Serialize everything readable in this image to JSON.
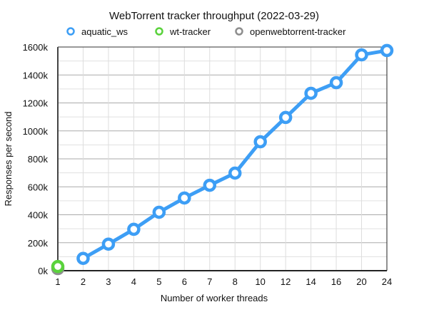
{
  "chart_data": {
    "type": "line",
    "title": "WebTorrent tracker throughput (2022-03-29)",
    "xlabel": "Number of worker threads",
    "ylabel": "Responses per second",
    "categories": [
      "1",
      "2",
      "3",
      "4",
      "5",
      "6",
      "7",
      "8",
      "10",
      "12",
      "14",
      "16",
      "20",
      "24"
    ],
    "ylim": [
      0,
      1600000
    ],
    "yticks": [
      0,
      200000,
      400000,
      600000,
      800000,
      1000000,
      1200000,
      1400000,
      1600000
    ],
    "ytick_labels": [
      "0k",
      "200k",
      "400k",
      "600k",
      "800k",
      "1000k",
      "1200k",
      "1400k",
      "1600k"
    ],
    "grid": true,
    "legend_position": "top",
    "series": [
      {
        "name": "aquatic_ws",
        "color": "#3d9ef5",
        "values": [
          null,
          88000,
          190000,
          296000,
          418000,
          520000,
          611000,
          698000,
          922000,
          1096000,
          1269000,
          1345000,
          1544000,
          1575000
        ]
      },
      {
        "name": "wt-tracker",
        "color": "#5ad23c",
        "values": [
          30000,
          null,
          null,
          null,
          null,
          null,
          null,
          null,
          null,
          null,
          null,
          null,
          null,
          null
        ]
      },
      {
        "name": "openwebtorrent-tracker",
        "color": "#8e8e8e",
        "values": [
          15000,
          null,
          null,
          null,
          null,
          null,
          null,
          null,
          null,
          null,
          null,
          null,
          null,
          null
        ]
      }
    ]
  }
}
